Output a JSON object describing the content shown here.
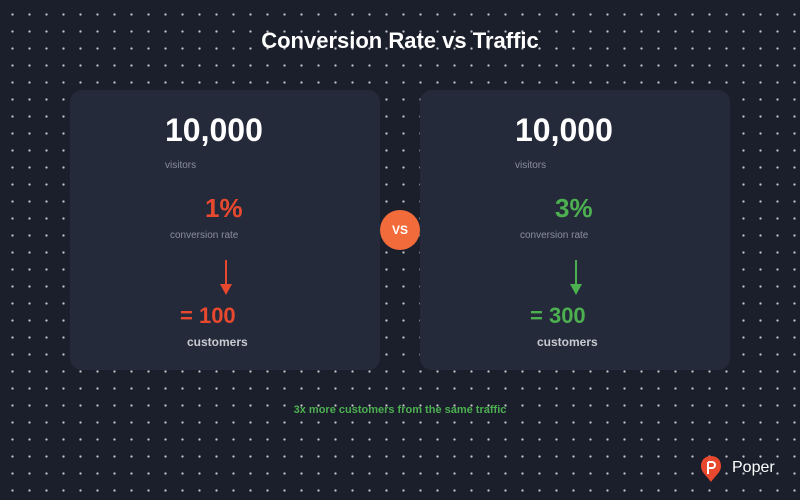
{
  "title": "Conversion Rate vs Traffic",
  "cards": [
    {
      "visitors": "10,000",
      "visitors_label": "visitors",
      "rate": "1%",
      "rate_label": "conversion rate",
      "result": "= 100",
      "result_label": "customers",
      "color": "#e8482e"
    },
    {
      "visitors": "10,000",
      "visitors_label": "visitors",
      "rate": "3%",
      "rate_label": "conversion rate",
      "result": "= 300",
      "result_label": "customers",
      "color": "#4caf50"
    }
  ],
  "vs": "VS",
  "footer": "3x more customers from the same traffic",
  "brand": "Poper"
}
